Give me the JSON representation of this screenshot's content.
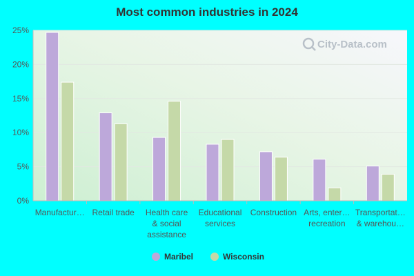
{
  "chart_data": {
    "type": "bar",
    "title": "Most common industries in 2024",
    "xlabel": "",
    "ylabel": "",
    "ylim": [
      0,
      25
    ],
    "yticks": [
      "0%",
      "5%",
      "10%",
      "15%",
      "20%",
      "25%"
    ],
    "categories": [
      [
        "Manufactur…"
      ],
      [
        "Retail trade"
      ],
      [
        "Health care",
        "& social",
        "assistance"
      ],
      [
        "Educational",
        "services"
      ],
      [
        "Construction"
      ],
      [
        "Arts, enter…",
        "recreation"
      ],
      [
        "Transportat…",
        "& warehou…"
      ]
    ],
    "series": [
      {
        "name": "Maribel",
        "color": "#BDA8DA",
        "values": [
          24.7,
          12.9,
          9.3,
          8.3,
          7.2,
          6.1,
          5.1
        ]
      },
      {
        "name": "Wisconsin",
        "color": "#C5D9A8",
        "values": [
          17.4,
          11.3,
          14.6,
          9.0,
          6.4,
          1.9,
          3.9
        ]
      }
    ],
    "legend_position": "bottom-center",
    "grid": true
  },
  "watermark": {
    "text": "City-Data.com"
  }
}
